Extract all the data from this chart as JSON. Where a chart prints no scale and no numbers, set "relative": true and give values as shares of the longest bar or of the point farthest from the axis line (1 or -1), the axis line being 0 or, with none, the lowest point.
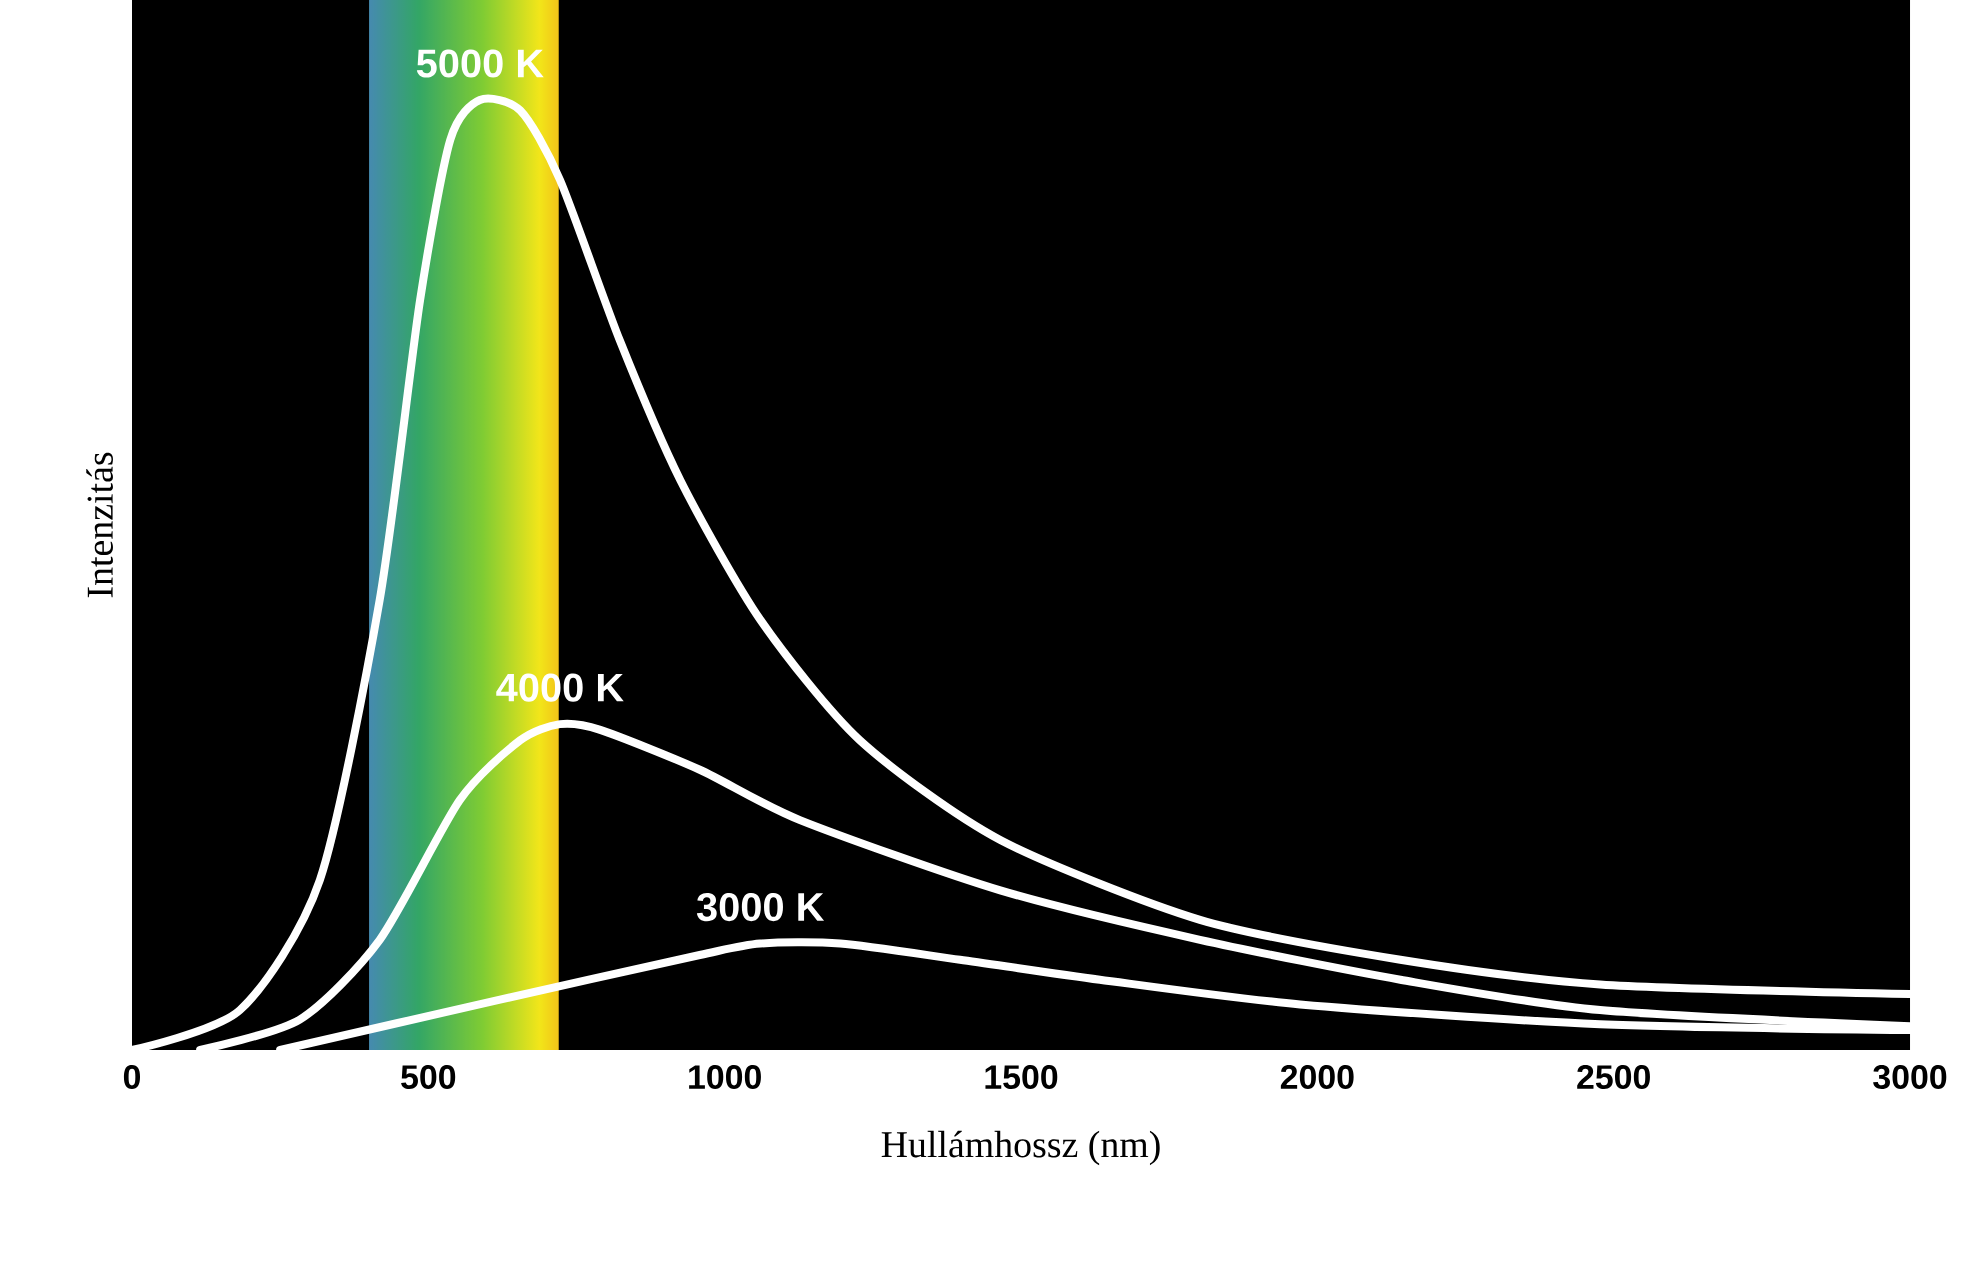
{
  "chart_data": {
    "type": "line",
    "xlabel": "Hullámhossz (nm)",
    "ylabel": "Intenzitás",
    "relative": true,
    "xlim": [
      0,
      3000
    ],
    "xticks": [
      0,
      500,
      1000,
      1500,
      2000,
      2500,
      3000
    ],
    "tick_labels": "x",
    "grid": false,
    "marker": "none",
    "line_style": "solid",
    "bands": [
      {
        "axis": "x",
        "from": 400,
        "to": 720
      }
    ],
    "series": [
      {
        "name": "5000 K",
        "color": "#ffffff",
        "x": [
          0,
          182,
          317,
          418,
          486,
          537,
          587,
          655,
          722,
          823,
          925,
          1060,
          1228,
          1465,
          1802,
          2140,
          2477,
          3000
        ],
        "values": [
          0,
          0.042,
          0.179,
          0.474,
          0.789,
          0.958,
          1,
          0.989,
          0.916,
          0.747,
          0.6,
          0.453,
          0.326,
          0.221,
          0.137,
          0.095,
          0.069,
          0.059
        ]
      },
      {
        "name": "4000 K",
        "color": "#ffffff",
        "x": [
          115,
          283,
          418,
          553,
          655,
          722,
          790,
          958,
          1127,
          1465,
          1802,
          2140,
          2477,
          3000
        ],
        "values": [
          0,
          0.032,
          0.116,
          0.263,
          0.326,
          0.343,
          0.337,
          0.295,
          0.242,
          0.168,
          0.116,
          0.074,
          0.042,
          0.025
        ]
      },
      {
        "name": "3000 K",
        "color": "#ffffff",
        "x": [
          250,
          621,
          958,
          1060,
          1195,
          1397,
          1633,
          1971,
          2477,
          3000
        ],
        "values": [
          0,
          0.053,
          0.1,
          0.112,
          0.112,
          0.095,
          0.074,
          0.048,
          0.027,
          0.021
        ]
      }
    ]
  }
}
